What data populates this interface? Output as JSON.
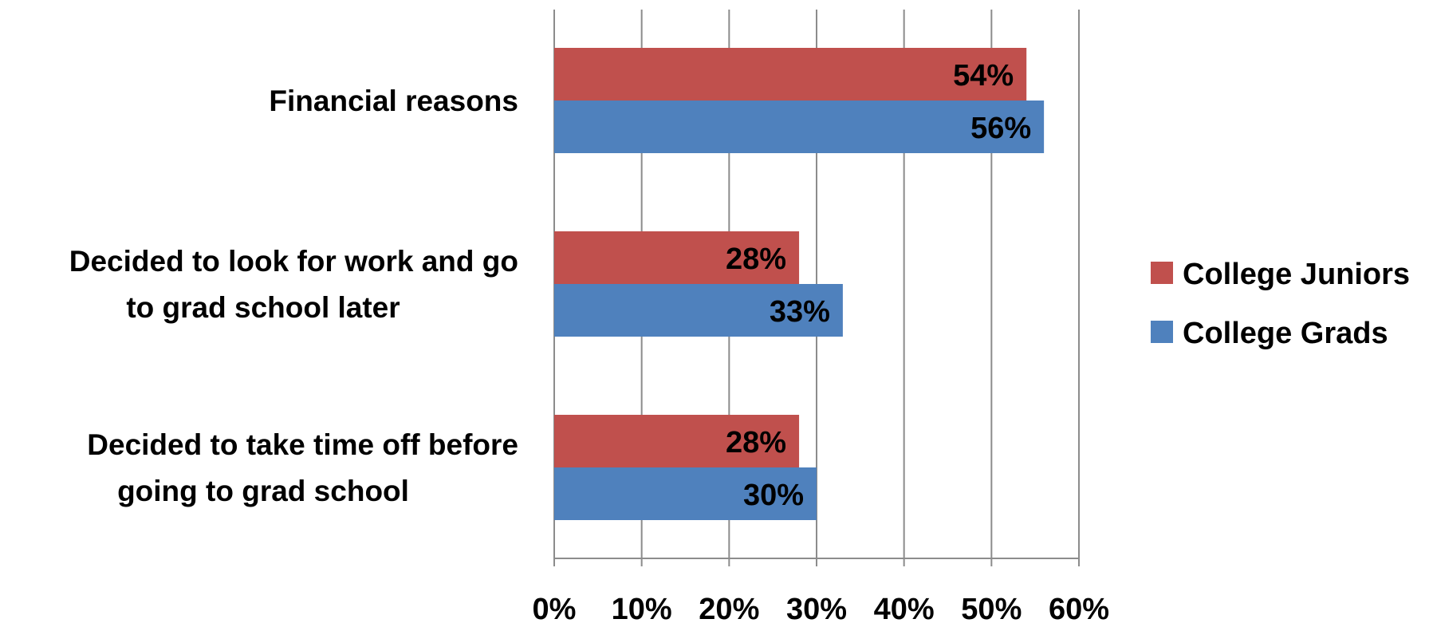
{
  "chart_data": {
    "type": "bar",
    "orientation": "horizontal",
    "title": "",
    "xlabel": "",
    "ylabel": "",
    "categories": [
      [
        "Financial reasons"
      ],
      [
        "Decided to look for work and go",
        "to grad school later"
      ],
      [
        "Decided to take time off before",
        "going to grad school"
      ]
    ],
    "series": [
      {
        "name": "College Juniors",
        "color": "#C0504D",
        "values": [
          54,
          28,
          28
        ],
        "labels": [
          "54%",
          "28%",
          "28%"
        ]
      },
      {
        "name": "College Grads",
        "color": "#4F81BD",
        "values": [
          56,
          33,
          30
        ],
        "labels": [
          "56%",
          "33%",
          "30%"
        ]
      }
    ],
    "xlim": [
      0,
      60
    ],
    "x_ticks": [
      "0%",
      "10%",
      "20%",
      "30%",
      "40%",
      "50%",
      "60%"
    ],
    "grid": true,
    "legend_position": "right"
  }
}
